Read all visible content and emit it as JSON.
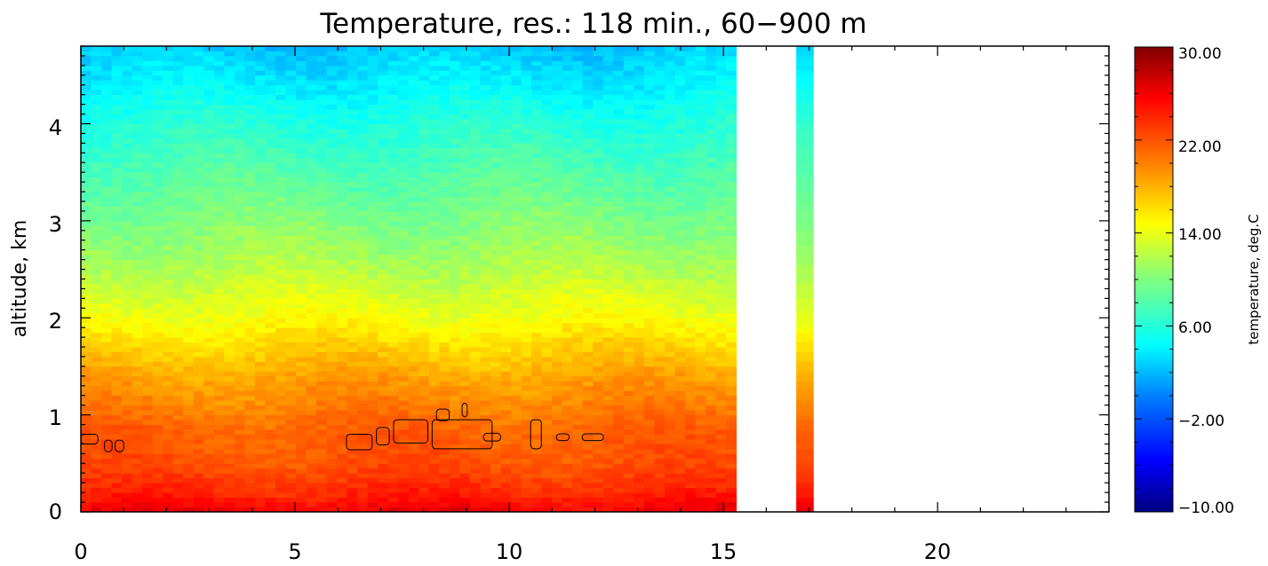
{
  "chart_data": {
    "type": "heatmap",
    "title": "Temperature, res.: 118 min.,  60−900 m",
    "xlabel": "",
    "ylabel": "altitude, km",
    "xlim": [
      0,
      24
    ],
    "ylim": [
      0,
      4.8
    ],
    "x_ticks": [
      "0",
      "5",
      "10",
      "15",
      "20"
    ],
    "y_ticks": [
      "0",
      "1",
      "2",
      "3",
      "4"
    ],
    "colorbar": {
      "label": "temperature, deg.C",
      "range": [
        -10,
        30
      ],
      "ticks": [
        "30.00",
        "22.00",
        "14.00",
        "6.00",
        "−2.00",
        "−10.00"
      ]
    },
    "data_extent": {
      "main": {
        "x": [
          0,
          15.3
        ]
      },
      "strip": {
        "x": [
          16.7,
          17.1
        ]
      }
    },
    "temperature_profile": {
      "altitude_km": [
        0.0,
        0.2,
        0.5,
        0.8,
        1.1,
        1.4,
        1.7,
        2.0,
        2.5,
        3.0,
        3.5,
        4.0,
        4.4,
        4.8
      ],
      "temp_c": [
        26,
        24,
        22,
        21.5,
        20,
        18.5,
        16.5,
        14.5,
        12,
        10,
        8,
        6,
        4,
        2.5
      ]
    },
    "cloud_contours_note": "thin black contour outlines between 0.6 and 1.2 km"
  }
}
